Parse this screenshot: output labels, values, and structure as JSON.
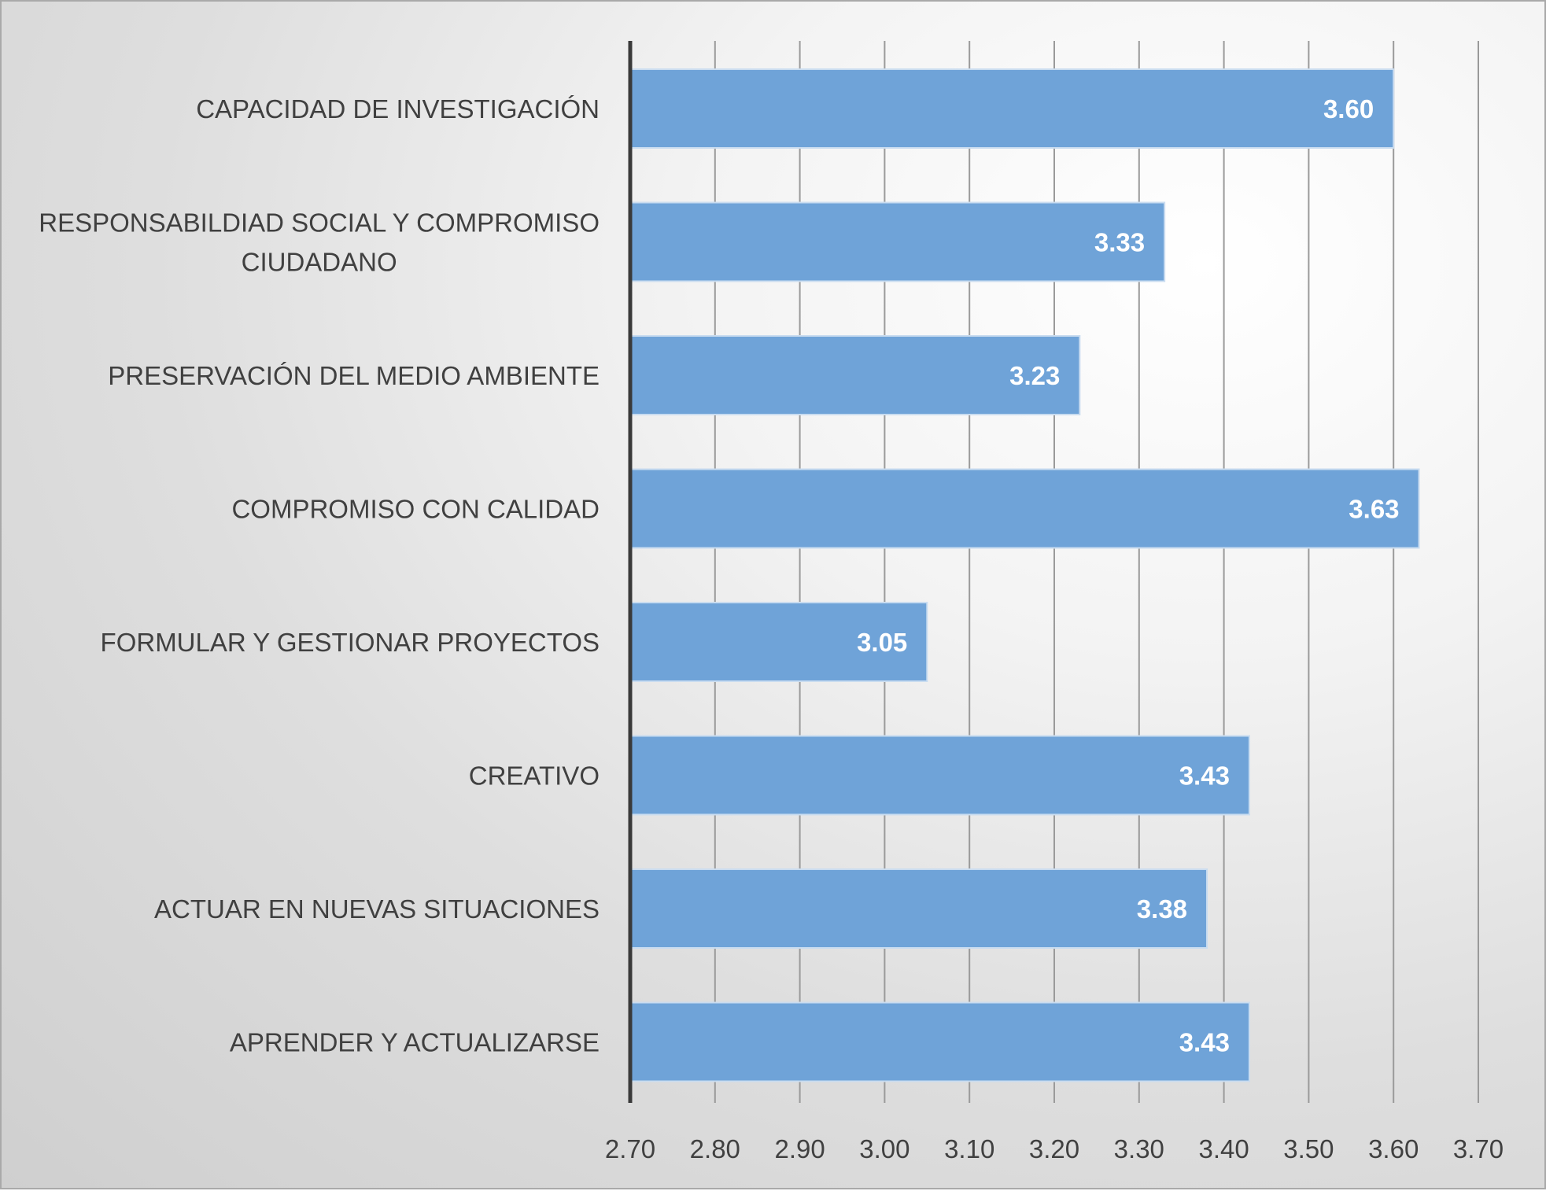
{
  "chart_data": {
    "type": "bar",
    "orientation": "horizontal",
    "title": "",
    "xlabel": "",
    "ylabel": "",
    "categories": [
      [
        "CAPACIDAD DE INVESTIGACIÓN"
      ],
      [
        "RESPONSABILDIAD SOCIAL Y COMPROMISO",
        "CIUDADANO"
      ],
      [
        "PRESERVACIÓN DEL MEDIO AMBIENTE"
      ],
      [
        "COMPROMISO CON CALIDAD"
      ],
      [
        "FORMULAR Y GESTIONAR PROYECTOS"
      ],
      [
        "CREATIVO"
      ],
      [
        "ACTUAR EN NUEVAS SITUACIONES"
      ],
      [
        "APRENDER Y ACTUALIZARSE"
      ]
    ],
    "values": [
      3.6,
      3.33,
      3.23,
      3.63,
      3.05,
      3.43,
      3.38,
      3.43
    ],
    "value_labels": [
      "3.60",
      "3.33",
      "3.23",
      "3.63",
      "3.05",
      "3.43",
      "3.38",
      "3.43"
    ],
    "xlim": [
      2.7,
      3.7
    ],
    "x_ticks": [
      "2.70",
      "2.80",
      "2.90",
      "3.00",
      "3.10",
      "3.20",
      "3.30",
      "3.40",
      "3.50",
      "3.60",
      "3.70"
    ],
    "grid": "vertical",
    "legend": "none",
    "colors": {
      "bar_fill": "#6fa3d8",
      "bar_stroke": "#c9dcf0",
      "gridline": "#9a9a9a",
      "axis_line": "#3a3a3a",
      "text": "#404040",
      "value_text": "#ffffff"
    }
  }
}
